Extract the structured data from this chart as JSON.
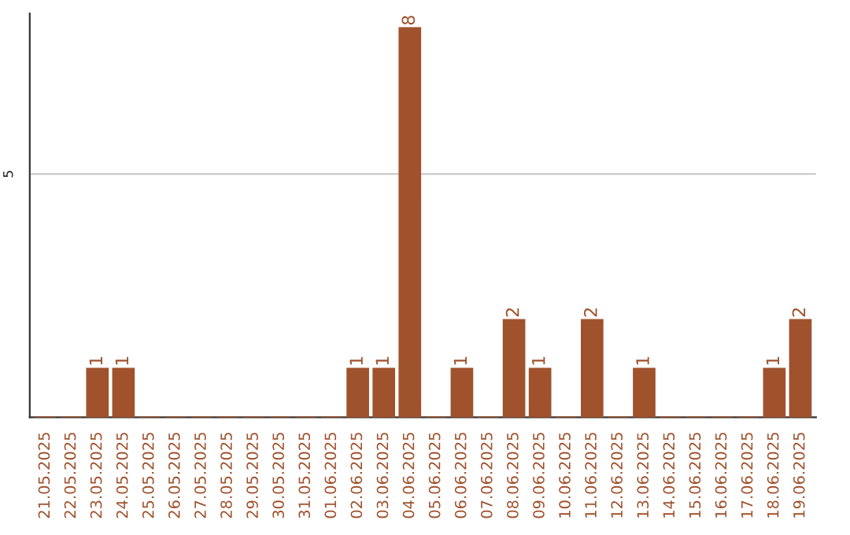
{
  "chart_data": {
    "type": "bar",
    "categories": [
      "21.05.2025",
      "22.05.2025",
      "23.05.2025",
      "24.05.2025",
      "25.05.2025",
      "26.05.2025",
      "27.05.2025",
      "28.05.2025",
      "29.05.2025",
      "30.05.2025",
      "31.05.2025",
      "01.06.2025",
      "02.06.2025",
      "03.06.2025",
      "04.06.2025",
      "05.06.2025",
      "06.06.2025",
      "07.06.2025",
      "08.06.2025",
      "09.06.2025",
      "10.06.2025",
      "11.06.2025",
      "12.06.2025",
      "13.06.2025",
      "14.06.2025",
      "15.06.2025",
      "16.06.2025",
      "17.06.2025",
      "18.06.2025",
      "19.06.2025"
    ],
    "values": [
      0,
      0,
      1,
      1,
      0,
      0,
      0,
      0,
      0,
      0,
      0,
      0,
      1,
      1,
      8,
      0,
      1,
      0,
      2,
      1,
      0,
      2,
      0,
      1,
      0,
      0,
      0,
      0,
      1,
      2
    ],
    "value_labels": [
      null,
      null,
      "1",
      "1",
      null,
      null,
      null,
      null,
      null,
      null,
      null,
      null,
      "1",
      "1",
      "8",
      null,
      "1",
      null,
      "2",
      "1",
      null,
      "2",
      null,
      "1",
      null,
      null,
      null,
      null,
      "1",
      "2"
    ],
    "color": "#a0522d",
    "ylim": [
      0,
      8.3
    ],
    "yticks": [
      5
    ],
    "grid": "y"
  }
}
